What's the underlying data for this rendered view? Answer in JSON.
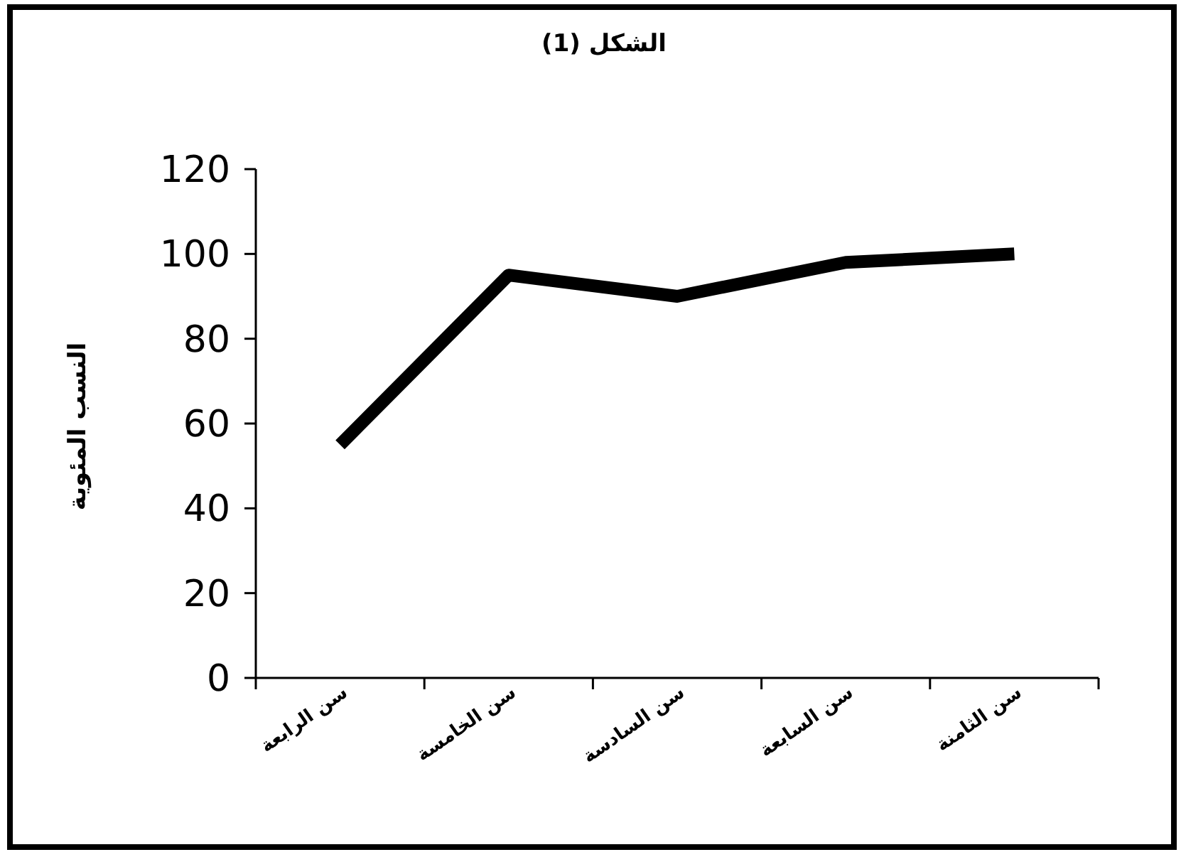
{
  "chart_data": {
    "type": "line",
    "title": "الشكل (1)",
    "ylabel": "النسب المئوية",
    "categories": [
      "سن الرابعة",
      "سن الخامسة",
      "سن السادسة",
      "سن السابعة",
      "سن الثامنة"
    ],
    "series": [
      {
        "color": "#000000",
        "values": [
          55,
          95,
          90,
          98,
          100
        ]
      }
    ],
    "ylim": [
      0,
      120
    ],
    "yticks": [
      0,
      20,
      40,
      60,
      80,
      100,
      120
    ],
    "grid": false,
    "marker": "none",
    "line_style": "solid"
  }
}
